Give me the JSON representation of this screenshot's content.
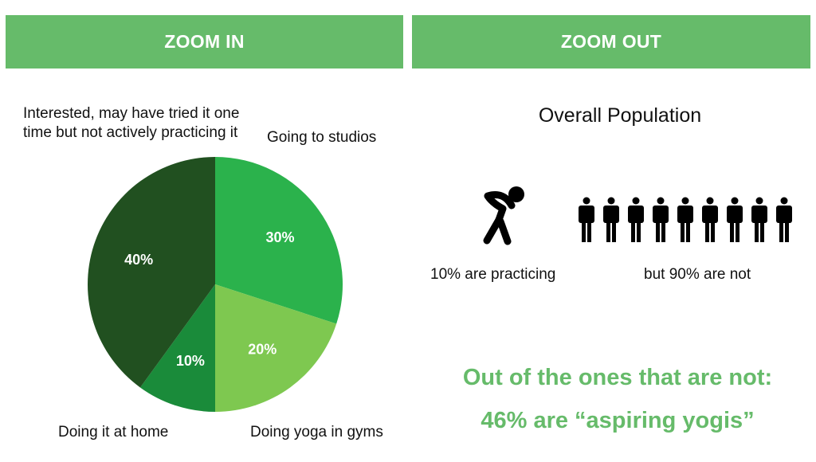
{
  "banners": {
    "left": "ZOOM IN",
    "right": "ZOOM OUT"
  },
  "chart_data": {
    "type": "pie",
    "slices": [
      {
        "label": "Going to studios",
        "value": 30,
        "display": "30%",
        "color": "#2bb24c"
      },
      {
        "label": "Doing yoga in gyms",
        "value": 20,
        "display": "20%",
        "color": "#7ec850"
      },
      {
        "label": "Doing it at home",
        "value": 10,
        "display": "10%",
        "color": "#1a8b3a"
      },
      {
        "label": "Interested, may have tried it one time but not actively practicing it",
        "value": 40,
        "display": "40%",
        "color": "#215020"
      }
    ]
  },
  "zoom_out": {
    "title": "Overall Population",
    "practicing_label": "10% are practicing",
    "not_label": "but 90% are not",
    "practicing_icon": "yoga-pose-icon",
    "person_icon": "person-icon",
    "person_count": 9,
    "highlight_line1": "Out of the ones that are not:",
    "highlight_line2": "46% are “aspiring yogis”",
    "highlight_color": "#66bb6a"
  }
}
